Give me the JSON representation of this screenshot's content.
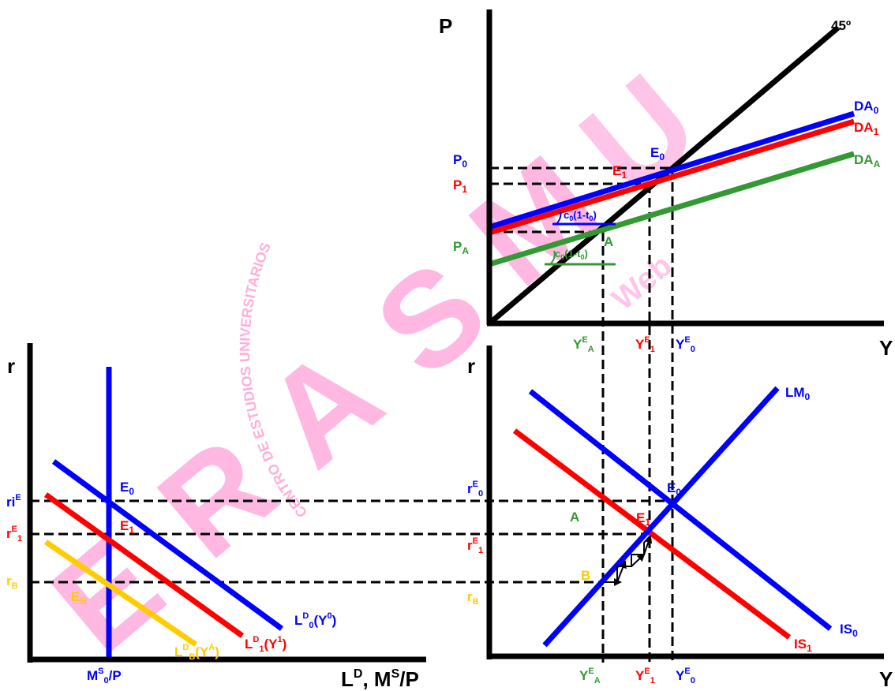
{
  "watermark": {
    "big_letters": "ERASMUS",
    "arc_text": "CENTRO DE ESTUDIOS UNIVERSITARIOS",
    "web": "Web"
  },
  "colors": {
    "axis": "#000000",
    "blue": "#0000ff",
    "red": "#ff0000",
    "green": "#339933",
    "yellow": "#ffcc00",
    "watermark": "#ff33aa"
  },
  "top": {
    "y_axis": "P",
    "x_axis": "Y",
    "line_45": "45º",
    "curves": {
      "da0": "DA",
      "da0_sub": "0",
      "da1": "DA",
      "da1_sub": "1",
      "daa": "DA",
      "daa_sub": "A"
    },
    "levels": {
      "p0": "P",
      "p0_sub": "0",
      "p1": "P",
      "p1_sub": "1",
      "pa": "P",
      "pa_sub": "A"
    },
    "points": {
      "e0": "E",
      "e0_sub": "0",
      "e1": "E",
      "e1_sub": "1",
      "a": "A"
    },
    "slope_label": "c",
    "slope_sub": "0",
    "slope_rest": "(1-t",
    "slope_sub2": "0",
    "slope_end": ")",
    "x_ticks": {
      "ya": "Y",
      "ya_sup": "E",
      "ya_sub": "A",
      "y1": "Y",
      "y1_sup": "E",
      "y1_sub": "1",
      "y0": "Y",
      "y0_sup": "E",
      "y0_sub": "0"
    }
  },
  "bottom_left": {
    "y_axis": "r",
    "x_axis_a": "L",
    "x_axis_sup": "D",
    "x_axis_b": ", M",
    "x_axis_sup2": "S",
    "x_axis_c": "/P",
    "ms_label": "M",
    "ms_sup": "S",
    "ms_sub": "0",
    "ms_end": "/P",
    "levels": {
      "ri": "ri",
      "ri_sup": "E",
      "re1": "r",
      "re1_sup": "E",
      "re1_sub": "1",
      "rb": "r",
      "rb_sub": "B"
    },
    "points": {
      "e0": "E",
      "e0_sub": "0",
      "e1": "E",
      "e1_sub": "1",
      "eb": "E",
      "eb_sub": "B"
    },
    "curves": {
      "ld0": "L",
      "ld0_sup": "D",
      "ld0_sub": "0",
      "ld0_arg": "(Y",
      "ld0_argsup": "0",
      "ld0_end": ")",
      "ld1": "L",
      "ld1_sup": "D",
      "ld1_sub": "1",
      "ld1_arg": "(Y",
      "ld1_argsup": "1",
      "ld1_end": ")",
      "ldb": "L",
      "ldb_sup": "D",
      "ldb_sub": "B",
      "ldb_arg": "(Y",
      "ldb_argsup": "A",
      "ldb_end": ")"
    }
  },
  "bottom_right": {
    "y_axis": "r",
    "x_axis": "Y",
    "curves": {
      "lm0": "LM",
      "lm0_sub": "0",
      "is0": "IS",
      "is0_sub": "0",
      "is1": "IS",
      "is1_sub": "1"
    },
    "levels": {
      "re0": "r",
      "re0_sup": "E",
      "re0_sub": "0",
      "re1": "r",
      "re1_sup": "E",
      "re1_sub": "1",
      "rb": "r",
      "rb_sub": "B"
    },
    "points": {
      "a": "A",
      "b": "B",
      "e0": "E",
      "e0_sub": "0",
      "e1": "E",
      "e1_sub": "1"
    },
    "x_ticks": {
      "ya": "Y",
      "ya_sup": "E",
      "ya_sub": "A",
      "y1": "Y",
      "y1_sup": "E",
      "y1_sub": "1",
      "y0": "Y",
      "y0_sup": "E",
      "y0_sub": "0"
    }
  }
}
